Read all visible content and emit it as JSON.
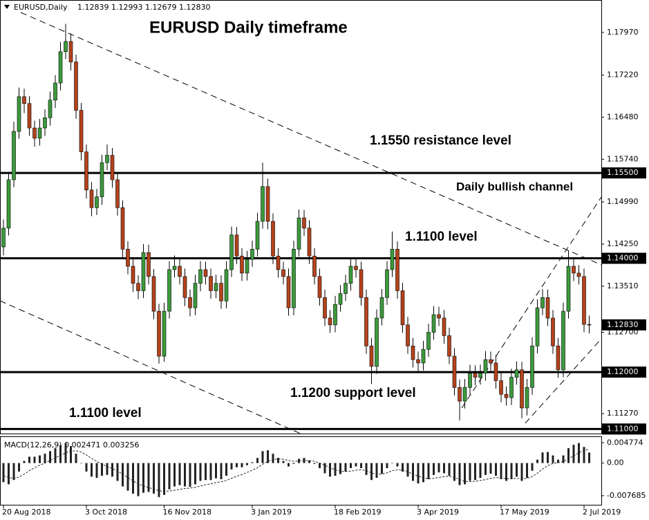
{
  "chart_data": [
    {
      "type": "candlestick",
      "title": "EURUSD Daily timeframe",
      "symbol": "EURUSD,Daily",
      "ohlc_text": "1.12839 1.12993 1.12679 1.12830",
      "annotations": [
        "1.1550 resistance level",
        "Daily bullish channel",
        "1.1100 level",
        "1.1200 support level",
        "1.1100 level"
      ],
      "up_color": "#3c9a3c",
      "down_color": "#b5431c",
      "grid": false,
      "ylim": [
        1.1092,
        1.1832
      ],
      "yticks": [
        {
          "value": 1.1797,
          "label": "1.17970"
        },
        {
          "value": 1.1722,
          "label": "1.17220"
        },
        {
          "value": 1.1648,
          "label": "1.16480"
        },
        {
          "value": 1.1574,
          "label": "1.15740"
        },
        {
          "value": 1.1499,
          "label": "1.14990"
        },
        {
          "value": 1.1425,
          "label": "1.14250"
        },
        {
          "value": 1.1351,
          "label": "1.13510"
        },
        {
          "value": 1.127,
          "label": "1.12700"
        },
        {
          "value": 1.1127,
          "label": "1.11270"
        }
      ],
      "levels": [
        {
          "value": 1.155,
          "label": "1.15500"
        },
        {
          "value": 1.14,
          "label": "1.14000"
        },
        {
          "value": 1.12,
          "label": "1.12000"
        },
        {
          "value": 1.11,
          "label": "1.11000"
        }
      ],
      "current_price": {
        "value": 1.1283,
        "label": "1.12830"
      },
      "xticks": [
        {
          "value": 0,
          "label": "20 Aug 2018"
        },
        {
          "value": 16,
          "label": "3 Oct 2018"
        },
        {
          "value": 31,
          "label": "16 Nov 2018"
        },
        {
          "value": 48,
          "label": "3 Jan 2019"
        },
        {
          "value": 64,
          "label": "18 Feb 2019"
        },
        {
          "value": 80,
          "label": "3 Apr 2019"
        },
        {
          "value": 96,
          "label": "17 May 2019"
        },
        {
          "value": 112,
          "label": "2 Jul 2019"
        }
      ],
      "candles": [
        [
          1.142,
          1.1468,
          1.1405,
          1.1453
        ],
        [
          1.1453,
          1.1552,
          1.144,
          1.1538
        ],
        [
          1.1538,
          1.164,
          1.1525,
          1.1623
        ],
        [
          1.1623,
          1.17,
          1.161,
          1.1684
        ],
        [
          1.1684,
          1.1698,
          1.1655,
          1.1672
        ],
        [
          1.1672,
          1.1685,
          1.1615,
          1.1629
        ],
        [
          1.1629,
          1.1642,
          1.1596,
          1.1611
        ],
        [
          1.1611,
          1.1645,
          1.1598,
          1.1629
        ],
        [
          1.1629,
          1.1662,
          1.1615,
          1.1647
        ],
        [
          1.1647,
          1.1693,
          1.1633,
          1.1678
        ],
        [
          1.1678,
          1.1722,
          1.1664,
          1.1708
        ],
        [
          1.1708,
          1.178,
          1.1695,
          1.1763
        ],
        [
          1.1763,
          1.1812,
          1.175,
          1.1781
        ],
        [
          1.1781,
          1.1795,
          1.173,
          1.1745
        ],
        [
          1.1745,
          1.1758,
          1.1645,
          1.166
        ],
        [
          1.166,
          1.1673,
          1.1572,
          1.1587
        ],
        [
          1.1587,
          1.16,
          1.1505,
          1.152
        ],
        [
          1.152,
          1.1534,
          1.1474,
          1.1489
        ],
        [
          1.1489,
          1.1522,
          1.1476,
          1.1508
        ],
        [
          1.1508,
          1.1582,
          1.1494,
          1.1568
        ],
        [
          1.1568,
          1.16,
          1.1555,
          1.1581
        ],
        [
          1.1581,
          1.1594,
          1.1524,
          1.1538
        ],
        [
          1.1538,
          1.1551,
          1.1475,
          1.1489
        ],
        [
          1.1489,
          1.1502,
          1.1402,
          1.1416
        ],
        [
          1.1416,
          1.143,
          1.1372,
          1.1386
        ],
        [
          1.1386,
          1.14,
          1.1341,
          1.1356
        ],
        [
          1.1356,
          1.137,
          1.1328,
          1.1343
        ],
        [
          1.1343,
          1.1425,
          1.133,
          1.141
        ],
        [
          1.141,
          1.1424,
          1.1354,
          1.1368
        ],
        [
          1.1368,
          1.1381,
          1.1293,
          1.1307
        ],
        [
          1.1307,
          1.132,
          1.1215,
          1.1228
        ],
        [
          1.1228,
          1.1322,
          1.1218,
          1.1307
        ],
        [
          1.1307,
          1.1395,
          1.1294,
          1.138
        ],
        [
          1.138,
          1.1405,
          1.1366,
          1.1386
        ],
        [
          1.1386,
          1.14,
          1.1354,
          1.1368
        ],
        [
          1.1368,
          1.1382,
          1.1316,
          1.1331
        ],
        [
          1.1331,
          1.1345,
          1.1298,
          1.1313
        ],
        [
          1.1313,
          1.1371,
          1.13,
          1.1356
        ],
        [
          1.1356,
          1.1395,
          1.1342,
          1.138
        ],
        [
          1.138,
          1.1394,
          1.1354,
          1.1368
        ],
        [
          1.1368,
          1.1382,
          1.1329,
          1.1343
        ],
        [
          1.1343,
          1.1371,
          1.133,
          1.1356
        ],
        [
          1.1356,
          1.137,
          1.1311,
          1.1325
        ],
        [
          1.1325,
          1.1395,
          1.1312,
          1.138
        ],
        [
          1.138,
          1.1456,
          1.1367,
          1.1441
        ],
        [
          1.1441,
          1.1455,
          1.139,
          1.1404
        ],
        [
          1.1404,
          1.1418,
          1.136,
          1.1374
        ],
        [
          1.1374,
          1.1413,
          1.1361,
          1.1398
        ],
        [
          1.1398,
          1.1431,
          1.1385,
          1.1416
        ],
        [
          1.1416,
          1.148,
          1.1403,
          1.1465
        ],
        [
          1.1465,
          1.1568,
          1.1452,
          1.1526
        ],
        [
          1.1526,
          1.154,
          1.1451,
          1.1465
        ],
        [
          1.1465,
          1.1479,
          1.139,
          1.1404
        ],
        [
          1.1404,
          1.1418,
          1.1366,
          1.138
        ],
        [
          1.138,
          1.1394,
          1.1354,
          1.1368
        ],
        [
          1.1368,
          1.1382,
          1.1299,
          1.1313
        ],
        [
          1.1313,
          1.1431,
          1.13,
          1.1416
        ],
        [
          1.1416,
          1.1486,
          1.1403,
          1.1471
        ],
        [
          1.1471,
          1.1485,
          1.1439,
          1.1453
        ],
        [
          1.1453,
          1.1467,
          1.139,
          1.1404
        ],
        [
          1.1404,
          1.1418,
          1.1354,
          1.1368
        ],
        [
          1.1368,
          1.1382,
          1.1317,
          1.1331
        ],
        [
          1.1331,
          1.1345,
          1.1281,
          1.1295
        ],
        [
          1.1295,
          1.1309,
          1.1269,
          1.1283
        ],
        [
          1.1283,
          1.1334,
          1.127,
          1.1319
        ],
        [
          1.1319,
          1.1353,
          1.1306,
          1.1338
        ],
        [
          1.1338,
          1.1371,
          1.1325,
          1.1356
        ],
        [
          1.1356,
          1.1401,
          1.1343,
          1.1386
        ],
        [
          1.1386,
          1.14,
          1.1366,
          1.138
        ],
        [
          1.138,
          1.1394,
          1.1317,
          1.1331
        ],
        [
          1.1331,
          1.1345,
          1.1232,
          1.1246
        ],
        [
          1.1246,
          1.126,
          1.1179,
          1.121
        ],
        [
          1.121,
          1.131,
          1.1197,
          1.1295
        ],
        [
          1.1295,
          1.1346,
          1.1282,
          1.1331
        ],
        [
          1.1331,
          1.1395,
          1.1318,
          1.138
        ],
        [
          1.138,
          1.1447,
          1.1367,
          1.1416
        ],
        [
          1.1416,
          1.143,
          1.1329,
          1.1343
        ],
        [
          1.1343,
          1.1357,
          1.1269,
          1.1283
        ],
        [
          1.1283,
          1.1297,
          1.1232,
          1.1246
        ],
        [
          1.1246,
          1.126,
          1.1208,
          1.1222
        ],
        [
          1.1222,
          1.1236,
          1.1202,
          1.1216
        ],
        [
          1.1216,
          1.1255,
          1.1203,
          1.124
        ],
        [
          1.124,
          1.1285,
          1.1227,
          1.127
        ],
        [
          1.127,
          1.1316,
          1.1257,
          1.1301
        ],
        [
          1.1301,
          1.1315,
          1.1281,
          1.1295
        ],
        [
          1.1295,
          1.1309,
          1.125,
          1.1264
        ],
        [
          1.1264,
          1.1278,
          1.1214,
          1.1228
        ],
        [
          1.1228,
          1.1242,
          1.1159,
          1.1173
        ],
        [
          1.1173,
          1.1187,
          1.1115,
          1.1149
        ],
        [
          1.1149,
          1.1188,
          1.1136,
          1.1173
        ],
        [
          1.1173,
          1.1213,
          1.116,
          1.1198
        ],
        [
          1.1198,
          1.1212,
          1.1177,
          1.1191
        ],
        [
          1.1191,
          1.1213,
          1.1178,
          1.1198
        ],
        [
          1.1198,
          1.1237,
          1.1185,
          1.1222
        ],
        [
          1.1222,
          1.1236,
          1.1202,
          1.1216
        ],
        [
          1.1216,
          1.123,
          1.1171,
          1.1185
        ],
        [
          1.1185,
          1.1199,
          1.1147,
          1.1161
        ],
        [
          1.1161,
          1.1175,
          1.1141,
          1.1155
        ],
        [
          1.1155,
          1.1206,
          1.1142,
          1.1191
        ],
        [
          1.1191,
          1.1219,
          1.1178,
          1.1204
        ],
        [
          1.1204,
          1.1218,
          1.1119,
          1.1137
        ],
        [
          1.1137,
          1.1188,
          1.1124,
          1.1173
        ],
        [
          1.1173,
          1.1261,
          1.116,
          1.1246
        ],
        [
          1.1246,
          1.1328,
          1.1233,
          1.1313
        ],
        [
          1.1313,
          1.1346,
          1.13,
          1.1331
        ],
        [
          1.1331,
          1.1345,
          1.1281,
          1.1295
        ],
        [
          1.1295,
          1.1309,
          1.1232,
          1.1246
        ],
        [
          1.1246,
          1.126,
          1.119,
          1.1204
        ],
        [
          1.1204,
          1.1322,
          1.1191,
          1.1307
        ],
        [
          1.1307,
          1.1414,
          1.1294,
          1.1386
        ],
        [
          1.1386,
          1.14,
          1.136,
          1.1374
        ],
        [
          1.1374,
          1.1388,
          1.1354,
          1.1368
        ],
        [
          1.1368,
          1.1382,
          1.127,
          1.12839
        ],
        [
          1.12839,
          1.12993,
          1.12679,
          1.1283
        ]
      ]
    },
    {
      "type": "macd",
      "label": "MACD(12,26,9) 0.002471 0.003256",
      "bar_color": "#222222",
      "signal_color": "#222222",
      "ylim": [
        -0.0095,
        0.0058
      ],
      "yticks": [
        0.004774,
        {
          "value": 0,
          "label": "0.00"
        },
        -0.007685
      ],
      "macd": [
        -0.0045,
        -0.005,
        -0.004,
        -0.002,
        0.0005,
        0.0015,
        0.0015,
        0.0018,
        0.0022,
        0.0028,
        0.0035,
        0.0042,
        0.0047,
        0.004,
        0.0022,
        0.0,
        -0.002,
        -0.0032,
        -0.0035,
        -0.003,
        -0.0028,
        -0.0032,
        -0.0042,
        -0.0055,
        -0.0065,
        -0.0072,
        -0.0078,
        -0.007,
        -0.0068,
        -0.0072,
        -0.008,
        -0.0075,
        -0.0062,
        -0.0055,
        -0.0052,
        -0.0055,
        -0.0056,
        -0.005,
        -0.0042,
        -0.004,
        -0.004,
        -0.0036,
        -0.0038,
        -0.003,
        -0.0015,
        -0.001,
        -0.001,
        -0.0005,
        0.0002,
        0.0012,
        0.0028,
        0.003,
        0.0022,
        0.0012,
        0.0005,
        -0.0008,
        -0.0002,
        0.001,
        0.0012,
        0.0006,
        -0.0002,
        -0.0012,
        -0.0024,
        -0.0032,
        -0.003,
        -0.0026,
        -0.002,
        -0.0012,
        -0.0008,
        -0.0012,
        -0.0028,
        -0.004,
        -0.0035,
        -0.0025,
        -0.0012,
        0.0,
        -0.0008,
        -0.002,
        -0.0032,
        -0.0042,
        -0.0048,
        -0.0045,
        -0.0038,
        -0.0028,
        -0.0022,
        -0.0024,
        -0.003,
        -0.0042,
        -0.0052,
        -0.005,
        -0.0042,
        -0.004,
        -0.0035,
        -0.0028,
        -0.0025,
        -0.003,
        -0.0038,
        -0.0042,
        -0.0038,
        -0.0032,
        -0.0042,
        -0.0035,
        -0.0018,
        0.0008,
        0.0025,
        0.0026,
        0.0018,
        0.0008,
        0.0018,
        0.0035,
        0.0043,
        0.0047,
        0.0038,
        0.002471
      ],
      "signal": [
        -0.003,
        -0.0034,
        -0.0036,
        -0.0033,
        -0.0026,
        -0.0018,
        -0.0011,
        -0.0005,
        0.0,
        0.0006,
        0.0012,
        0.0018,
        0.0024,
        0.0028,
        0.0029,
        0.0026,
        0.0019,
        0.0011,
        0.0004,
        -0.0003,
        -0.0008,
        -0.0013,
        -0.0019,
        -0.0026,
        -0.0034,
        -0.0042,
        -0.0049,
        -0.0054,
        -0.0058,
        -0.0061,
        -0.0065,
        -0.0067,
        -0.0066,
        -0.0064,
        -0.0062,
        -0.006,
        -0.0059,
        -0.0057,
        -0.0054,
        -0.0051,
        -0.0049,
        -0.0046,
        -0.0044,
        -0.0041,
        -0.0036,
        -0.0031,
        -0.0027,
        -0.0022,
        -0.0017,
        -0.0011,
        -0.0003,
        0.0004,
        0.0008,
        0.001,
        0.0009,
        0.0006,
        0.0004,
        0.0005,
        0.0006,
        0.0006,
        0.0004,
        0.0,
        -0.0005,
        -0.0011,
        -0.0016,
        -0.0019,
        -0.002,
        -0.0019,
        -0.0017,
        -0.0016,
        -0.0018,
        -0.0023,
        -0.0026,
        -0.0026,
        -0.0023,
        -0.0018,
        -0.0016,
        -0.0017,
        -0.0021,
        -0.0026,
        -0.0031,
        -0.0035,
        -0.0037,
        -0.0036,
        -0.0034,
        -0.0032,
        -0.0031,
        -0.0034,
        -0.0039,
        -0.0043,
        -0.0044,
        -0.0043,
        -0.0041,
        -0.0039,
        -0.0036,
        -0.0034,
        -0.0035,
        -0.0037,
        -0.0037,
        -0.0036,
        -0.0037,
        -0.0036,
        -0.0032,
        -0.0024,
        -0.0014,
        -0.0006,
        -0.0001,
        0.0001,
        0.0004,
        0.001,
        0.0017,
        0.0024,
        0.003,
        0.003256
      ]
    }
  ]
}
